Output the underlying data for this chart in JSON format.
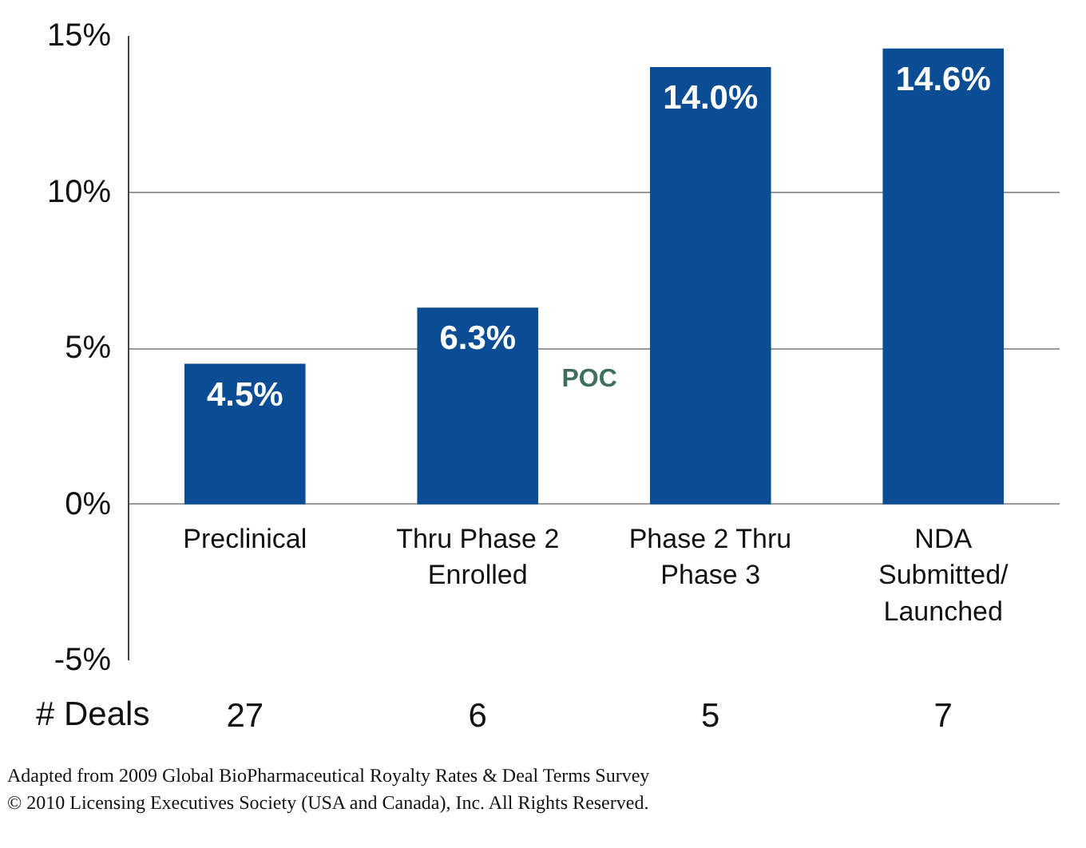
{
  "chart_data": {
    "type": "bar",
    "categories": [
      "Preclinical",
      "Thru Phase 2\nEnrolled",
      "Phase 2 Thru\nPhase 3",
      "NDA\nSubmitted/\nLaunched"
    ],
    "values": [
      4.5,
      6.3,
      14.0,
      14.6
    ],
    "value_labels": [
      "4.5%",
      "6.3%",
      "14.0%",
      "14.6%"
    ],
    "color": "#0a4d94",
    "ylim": [
      -5,
      15
    ],
    "yticks": [
      {
        "value": -5,
        "label": "-5%"
      },
      {
        "value": 0,
        "label": "0%"
      },
      {
        "value": 5,
        "label": "5%"
      },
      {
        "value": 10,
        "label": "10%"
      },
      {
        "value": 15,
        "label": "15%"
      }
    ],
    "grid": "y",
    "annotations": [
      "POC",
      "# Deals",
      "27",
      "6",
      "5",
      "7",
      "Adapted from 2009 Global BioPharmaceutical Royalty Rates & Deal Terms Survey",
      "© 2010 Licensing Executives Society (USA and Canada), Inc. All Rights Reserved."
    ]
  }
}
